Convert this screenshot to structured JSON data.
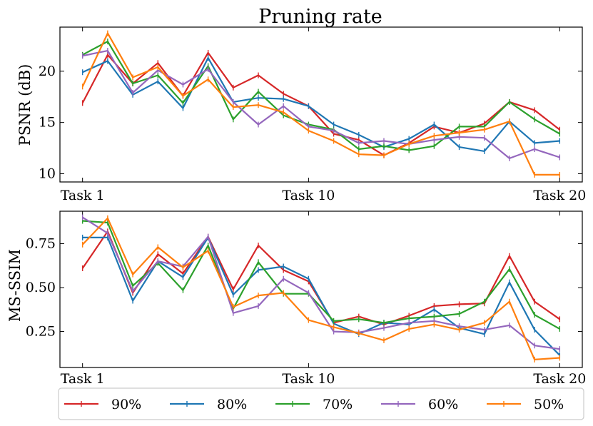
{
  "chart_data": {
    "type": "line",
    "title": "Pruning rate",
    "x": [
      1,
      2,
      3,
      4,
      5,
      6,
      7,
      8,
      9,
      10,
      11,
      12,
      13,
      14,
      15,
      16,
      17,
      18,
      19,
      20
    ],
    "xtick_values": [
      1,
      10,
      20
    ],
    "xtick_labels": [
      "Task 1",
      "Task 10",
      "Task 20"
    ],
    "xlim": [
      0.1,
      20.9
    ],
    "legend": {
      "placement": "bottom",
      "entries": [
        {
          "label": "90%",
          "color": "#d62728"
        },
        {
          "label": "80%",
          "color": "#1f77b4"
        },
        {
          "label": "70%",
          "color": "#2ca02c"
        },
        {
          "label": "60%",
          "color": "#9467bd"
        },
        {
          "label": "50%",
          "color": "#ff7f0e"
        }
      ]
    },
    "panels": [
      {
        "id": "psnr",
        "ylabel": "PSNR (dB)",
        "ylim": [
          9.2,
          24.3
        ],
        "ytick_values": [
          10,
          15,
          20
        ],
        "ytick_labels": [
          "10",
          "15",
          "20"
        ],
        "series": [
          {
            "name": "90%",
            "color": "#d62728",
            "values": [
              16.9,
              21.6,
              18.8,
              20.8,
              17.6,
              21.8,
              18.4,
              19.6,
              17.8,
              16.6,
              13.9,
              13.3,
              11.8,
              13.0,
              14.6,
              14.0,
              14.9,
              17.0,
              16.2,
              14.3
            ]
          },
          {
            "name": "80%",
            "color": "#1f77b4",
            "values": [
              19.9,
              21.0,
              17.7,
              19.0,
              16.4,
              21.3,
              17.0,
              17.4,
              17.3,
              16.6,
              14.8,
              13.8,
              12.6,
              13.4,
              14.8,
              12.6,
              12.2,
              15.1,
              13.0,
              13.2
            ]
          },
          {
            "name": "70%",
            "color": "#2ca02c",
            "values": [
              21.6,
              22.9,
              18.8,
              19.6,
              16.9,
              20.5,
              15.3,
              18.0,
              15.7,
              14.8,
              14.3,
              12.4,
              12.7,
              12.3,
              12.7,
              14.6,
              14.6,
              17.0,
              15.3,
              13.9
            ]
          },
          {
            "name": "60%",
            "color": "#9467bd",
            "values": [
              21.5,
              22.0,
              17.9,
              20.1,
              18.7,
              20.2,
              17.0,
              14.8,
              16.6,
              14.6,
              14.2,
              13.0,
              13.2,
              12.9,
              13.3,
              13.6,
              13.5,
              11.5,
              12.4,
              11.6
            ]
          },
          {
            "name": "50%",
            "color": "#ff7f0e",
            "values": [
              18.5,
              23.7,
              19.4,
              20.4,
              17.6,
              19.2,
              16.5,
              16.7,
              16.0,
              14.2,
              13.2,
              11.9,
              11.8,
              12.9,
              13.7,
              14.0,
              14.3,
              15.1,
              9.9,
              9.9
            ]
          }
        ]
      },
      {
        "id": "msssim",
        "ylabel": "MS-SSIM",
        "ylim": [
          0.045,
          0.935
        ],
        "ytick_values": [
          0.25,
          0.5,
          0.75
        ],
        "ytick_labels": [
          "0.25",
          "0.50",
          "0.75"
        ],
        "series": [
          {
            "name": "90%",
            "color": "#d62728",
            "values": [
              0.61,
              0.82,
              0.47,
              0.69,
              0.58,
              0.79,
              0.49,
              0.74,
              0.6,
              0.535,
              0.3,
              0.335,
              0.29,
              0.34,
              0.395,
              0.405,
              0.41,
              0.68,
              0.42,
              0.32
            ]
          },
          {
            "name": "80%",
            "color": "#1f77b4",
            "values": [
              0.785,
              0.785,
              0.425,
              0.65,
              0.56,
              0.785,
              0.46,
              0.6,
              0.62,
              0.55,
              0.295,
              0.235,
              0.3,
              0.29,
              0.375,
              0.27,
              0.235,
              0.53,
              0.26,
              0.115
            ]
          },
          {
            "name": "70%",
            "color": "#2ca02c",
            "values": [
              0.88,
              0.87,
              0.51,
              0.64,
              0.485,
              0.74,
              0.38,
              0.645,
              0.465,
              0.465,
              0.31,
              0.32,
              0.3,
              0.325,
              0.335,
              0.35,
              0.42,
              0.605,
              0.345,
              0.265
            ]
          },
          {
            "name": "60%",
            "color": "#9467bd",
            "values": [
              0.9,
              0.81,
              0.48,
              0.65,
              0.62,
              0.79,
              0.355,
              0.395,
              0.55,
              0.47,
              0.25,
              0.245,
              0.27,
              0.3,
              0.31,
              0.28,
              0.26,
              0.285,
              0.17,
              0.15
            ]
          },
          {
            "name": "50%",
            "color": "#ff7f0e",
            "values": [
              0.745,
              0.895,
              0.575,
              0.73,
              0.615,
              0.71,
              0.39,
              0.455,
              0.47,
              0.315,
              0.275,
              0.24,
              0.2,
              0.265,
              0.29,
              0.26,
              0.3,
              0.42,
              0.09,
              0.1
            ]
          }
        ]
      }
    ]
  }
}
